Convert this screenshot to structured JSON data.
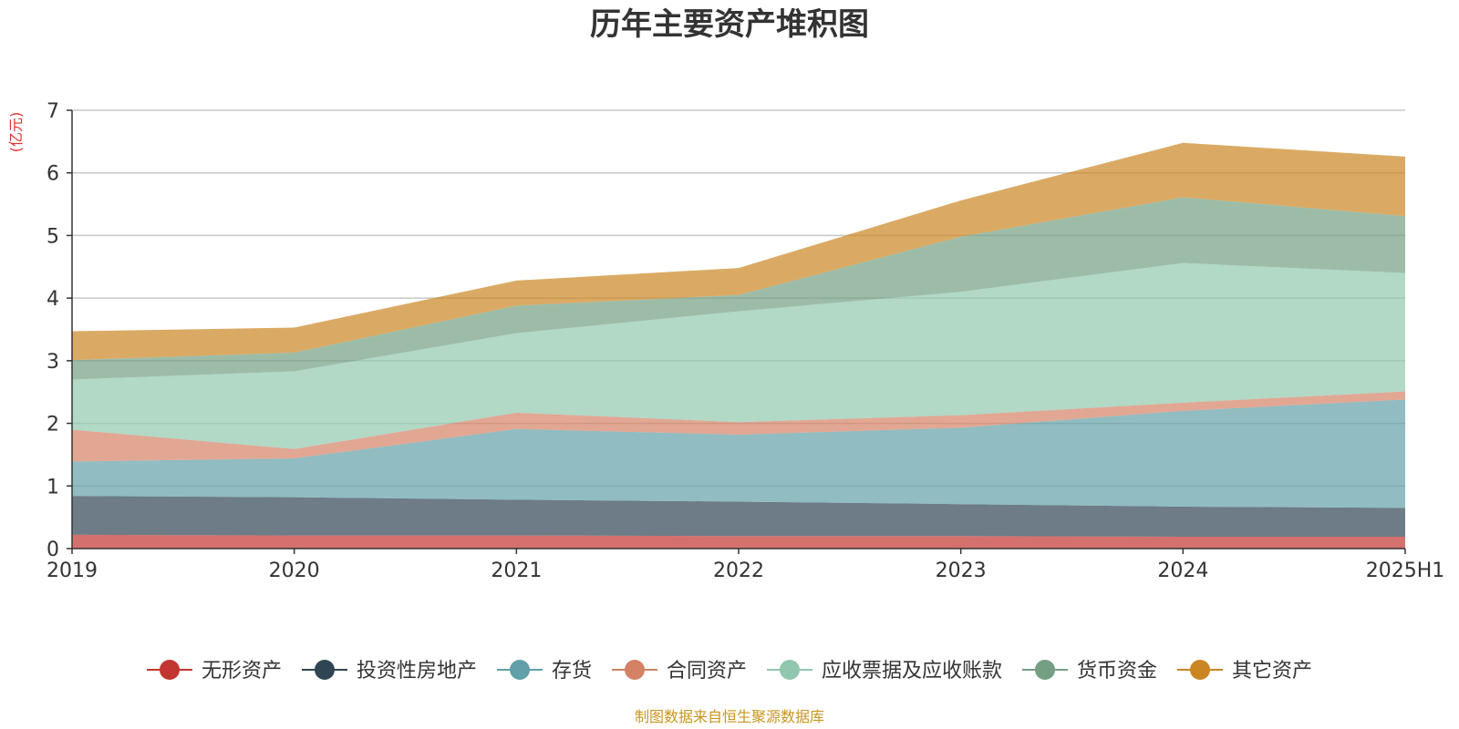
{
  "chart_data": {
    "type": "area",
    "stacked": true,
    "title": "历年主要资产堆积图",
    "unit_label": "(亿元)",
    "source": "制图数据来自恒生聚源数据库",
    "categories": [
      "2019",
      "2020",
      "2021",
      "2022",
      "2023",
      "2024",
      "2025H1"
    ],
    "ylim": [
      0,
      7
    ],
    "yticks": [
      0,
      1,
      2,
      3,
      4,
      5,
      6,
      7
    ],
    "grid": true,
    "legend_position": "bottom",
    "series": [
      {
        "name": "无形资产",
        "color": "#c23531",
        "values": [
          0.22,
          0.21,
          0.21,
          0.2,
          0.2,
          0.19,
          0.19
        ]
      },
      {
        "name": "投资性房地产",
        "color": "#2f4554",
        "values": [
          0.62,
          0.61,
          0.57,
          0.55,
          0.51,
          0.48,
          0.46
        ]
      },
      {
        "name": "存货",
        "color": "#61a0a8",
        "values": [
          0.55,
          0.62,
          1.13,
          1.07,
          1.22,
          1.53,
          1.73
        ]
      },
      {
        "name": "合同资产",
        "color": "#d48265",
        "values": [
          0.51,
          0.15,
          0.26,
          0.2,
          0.2,
          0.13,
          0.13
        ]
      },
      {
        "name": "应收票据及应收账款",
        "color": "#91c7ae",
        "values": [
          0.8,
          1.24,
          1.27,
          1.77,
          1.97,
          2.23,
          1.89
        ]
      },
      {
        "name": "货币资金",
        "color": "#749f83",
        "values": [
          0.31,
          0.3,
          0.44,
          0.26,
          0.88,
          1.05,
          0.91
        ]
      },
      {
        "name": "其它资产",
        "color": "#ca8622",
        "values": [
          0.46,
          0.4,
          0.4,
          0.43,
          0.58,
          0.87,
          0.95
        ]
      }
    ]
  }
}
